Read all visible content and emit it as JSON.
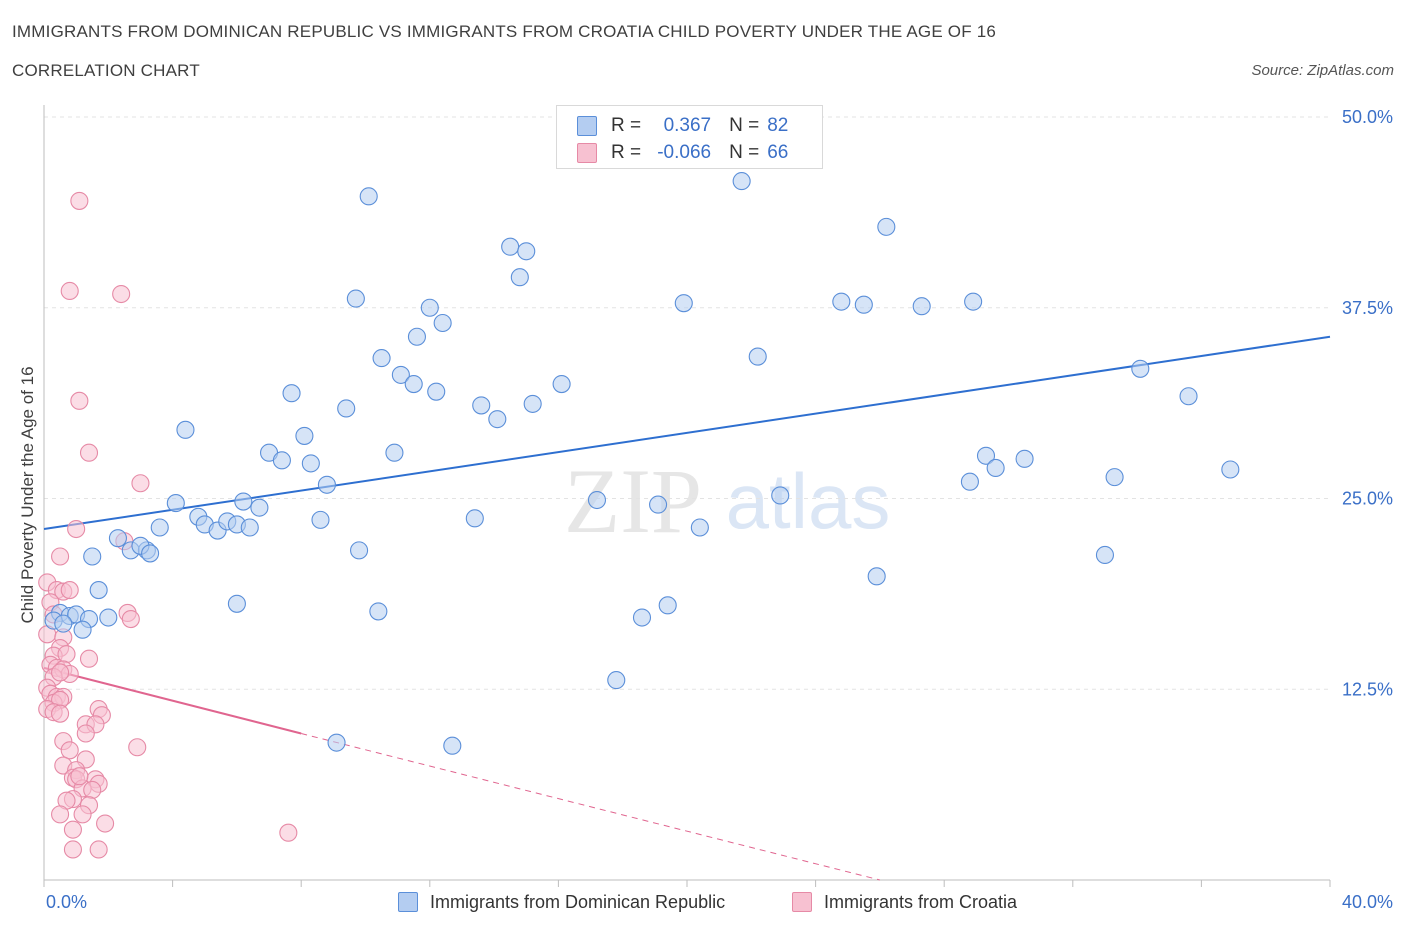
{
  "title": "IMMIGRANTS FROM DOMINICAN REPUBLIC VS IMMIGRANTS FROM CROATIA CHILD POVERTY UNDER THE AGE OF 16",
  "subtitle": "CORRELATION CHART",
  "source": "Source: ZipAtlas.com",
  "watermark": {
    "zip": "ZIP",
    "atlas": "atlas"
  },
  "colors": {
    "blue": "#5b8fd9",
    "blue_fill": "#b4cdf1",
    "blue_line": "#2e6fd0",
    "pink": "#e68aa6",
    "pink_fill": "#f7c1d1",
    "pink_line": "#e0658f",
    "axis_text": "#3a6fc7",
    "grid": "#e3e3e3"
  },
  "legend": {
    "r_label": "R =",
    "n_label": "N =",
    "series1": {
      "r": "0.367",
      "n": "82"
    },
    "series2": {
      "r": "-0.066",
      "n": "66"
    }
  },
  "bottom_legend": {
    "series1": "Immigrants from Dominican Republic",
    "series2": "Immigrants from Croatia"
  },
  "chart_data": {
    "type": "scatter",
    "title": "IMMIGRANTS FROM DOMINICAN REPUBLIC VS IMMIGRANTS FROM CROATIA CHILD POVERTY UNDER THE AGE OF 16",
    "xlabel": "",
    "ylabel": "Child Poverty Under the Age of 16",
    "xlim": [
      0,
      40
    ],
    "ylim": [
      0,
      50
    ],
    "x_tick_labels": [
      "0.0%",
      "40.0%"
    ],
    "y_ticks": [
      12.5,
      25.0,
      37.5,
      50.0
    ],
    "y_tick_labels": [
      "12.5%",
      "25.0%",
      "37.5%",
      "50.0%"
    ],
    "grid": true,
    "series": [
      {
        "name": "Immigrants from Dominican Republic",
        "color": "#5b8fd9",
        "trend": {
          "x": [
            0,
            40
          ],
          "y": [
            23.0,
            35.6
          ],
          "style": "solid"
        },
        "points": [
          [
            10.1,
            44.8
          ],
          [
            14.5,
            41.5
          ],
          [
            14.8,
            39.5
          ],
          [
            15.0,
            41.2
          ],
          [
            21.7,
            45.8
          ],
          [
            26.2,
            42.8
          ],
          [
            9.7,
            38.1
          ],
          [
            12.0,
            37.5
          ],
          [
            12.4,
            36.5
          ],
          [
            11.6,
            35.6
          ],
          [
            10.5,
            34.2
          ],
          [
            11.1,
            33.1
          ],
          [
            11.5,
            32.5
          ],
          [
            12.2,
            32.0
          ],
          [
            16.1,
            32.5
          ],
          [
            19.9,
            37.8
          ],
          [
            22.2,
            34.3
          ],
          [
            24.8,
            37.9
          ],
          [
            25.5,
            37.7
          ],
          [
            27.3,
            37.6
          ],
          [
            28.9,
            37.9
          ],
          [
            34.1,
            33.5
          ],
          [
            35.6,
            31.7
          ],
          [
            13.6,
            31.1
          ],
          [
            14.1,
            30.2
          ],
          [
            15.2,
            31.2
          ],
          [
            9.4,
            30.9
          ],
          [
            7.7,
            31.9
          ],
          [
            8.1,
            29.1
          ],
          [
            4.4,
            29.5
          ],
          [
            7.0,
            28.0
          ],
          [
            7.4,
            27.5
          ],
          [
            8.3,
            27.3
          ],
          [
            10.9,
            28.0
          ],
          [
            8.8,
            25.9
          ],
          [
            4.1,
            24.7
          ],
          [
            6.2,
            24.8
          ],
          [
            6.7,
            24.4
          ],
          [
            4.8,
            23.8
          ],
          [
            5.0,
            23.3
          ],
          [
            5.4,
            22.9
          ],
          [
            5.7,
            23.5
          ],
          [
            6.0,
            23.3
          ],
          [
            6.4,
            23.1
          ],
          [
            3.6,
            23.1
          ],
          [
            8.6,
            23.6
          ],
          [
            13.4,
            23.7
          ],
          [
            17.2,
            24.9
          ],
          [
            19.1,
            24.6
          ],
          [
            20.4,
            23.1
          ],
          [
            22.9,
            25.2
          ],
          [
            28.8,
            26.1
          ],
          [
            29.3,
            27.8
          ],
          [
            29.6,
            27.0
          ],
          [
            30.5,
            27.6
          ],
          [
            33.0,
            21.3
          ],
          [
            33.3,
            26.4
          ],
          [
            36.9,
            26.9
          ],
          [
            2.3,
            22.4
          ],
          [
            2.7,
            21.6
          ],
          [
            3.2,
            21.6
          ],
          [
            3.0,
            21.9
          ],
          [
            3.3,
            21.4
          ],
          [
            1.5,
            21.2
          ],
          [
            9.8,
            21.6
          ],
          [
            6.0,
            18.1
          ],
          [
            1.7,
            19.0
          ],
          [
            10.4,
            17.6
          ],
          [
            18.6,
            17.2
          ],
          [
            19.4,
            18.0
          ],
          [
            25.9,
            19.9
          ],
          [
            0.5,
            17.5
          ],
          [
            0.8,
            17.3
          ],
          [
            1.0,
            17.4
          ],
          [
            1.4,
            17.1
          ],
          [
            2.0,
            17.2
          ],
          [
            1.2,
            16.4
          ],
          [
            17.8,
            13.1
          ],
          [
            9.1,
            9.0
          ],
          [
            12.7,
            8.8
          ],
          [
            0.3,
            17.0
          ],
          [
            0.6,
            16.8
          ]
        ]
      },
      {
        "name": "Immigrants from Croatia",
        "color": "#e68aa6",
        "trend": {
          "x": [
            0,
            8.0,
            26.0
          ],
          "y": [
            13.9,
            9.6,
            0
          ],
          "style": "solid-then-dashed"
        },
        "points": [
          [
            1.1,
            44.5
          ],
          [
            0.8,
            38.6
          ],
          [
            2.4,
            38.4
          ],
          [
            1.1,
            31.4
          ],
          [
            1.4,
            28.0
          ],
          [
            3.0,
            26.0
          ],
          [
            1.0,
            23.0
          ],
          [
            2.5,
            22.2
          ],
          [
            0.5,
            21.2
          ],
          [
            0.1,
            19.5
          ],
          [
            0.4,
            19.0
          ],
          [
            0.6,
            18.9
          ],
          [
            0.8,
            19.0
          ],
          [
            0.2,
            18.2
          ],
          [
            0.3,
            17.4
          ],
          [
            2.6,
            17.5
          ],
          [
            2.7,
            17.1
          ],
          [
            0.1,
            16.1
          ],
          [
            0.6,
            15.9
          ],
          [
            0.5,
            15.2
          ],
          [
            0.3,
            14.7
          ],
          [
            0.7,
            14.8
          ],
          [
            1.4,
            14.5
          ],
          [
            0.2,
            14.1
          ],
          [
            0.4,
            13.9
          ],
          [
            0.6,
            13.8
          ],
          [
            0.8,
            13.5
          ],
          [
            0.3,
            13.3
          ],
          [
            0.5,
            13.6
          ],
          [
            0.1,
            12.6
          ],
          [
            0.2,
            12.2
          ],
          [
            0.4,
            12.0
          ],
          [
            0.6,
            12.0
          ],
          [
            0.3,
            11.6
          ],
          [
            0.5,
            11.8
          ],
          [
            0.1,
            11.2
          ],
          [
            0.3,
            11.0
          ],
          [
            0.5,
            10.9
          ],
          [
            1.7,
            11.2
          ],
          [
            1.8,
            10.8
          ],
          [
            1.3,
            10.2
          ],
          [
            1.6,
            10.2
          ],
          [
            1.3,
            9.6
          ],
          [
            0.6,
            9.1
          ],
          [
            0.8,
            8.5
          ],
          [
            2.9,
            8.7
          ],
          [
            0.6,
            7.5
          ],
          [
            1.3,
            7.9
          ],
          [
            1.0,
            7.2
          ],
          [
            0.9,
            6.7
          ],
          [
            1.0,
            6.6
          ],
          [
            1.6,
            6.6
          ],
          [
            1.7,
            6.3
          ],
          [
            1.2,
            6.0
          ],
          [
            0.9,
            5.3
          ],
          [
            1.5,
            5.9
          ],
          [
            1.4,
            4.9
          ],
          [
            0.7,
            5.2
          ],
          [
            0.5,
            4.3
          ],
          [
            1.2,
            4.3
          ],
          [
            1.9,
            3.7
          ],
          [
            0.9,
            3.3
          ],
          [
            7.6,
            3.1
          ],
          [
            0.9,
            2.0
          ],
          [
            1.7,
            2.0
          ],
          [
            1.1,
            6.8
          ]
        ]
      }
    ]
  }
}
